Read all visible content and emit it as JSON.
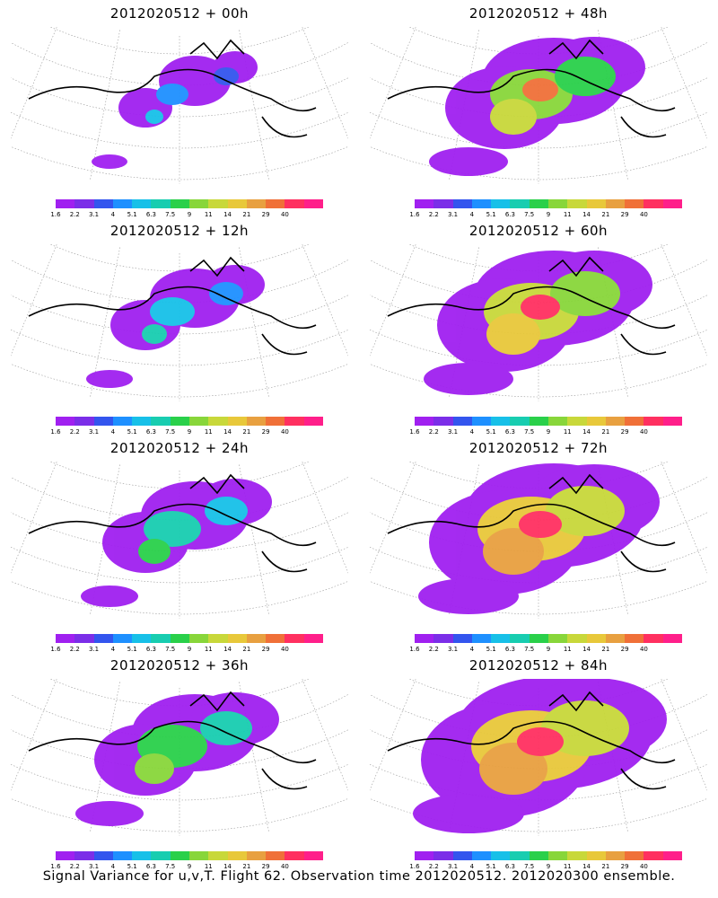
{
  "panels": [
    {
      "title": "2012020512 + 00h",
      "level": 0
    },
    {
      "title": "2012020512 + 48h",
      "level": 4
    },
    {
      "title": "2012020512 + 12h",
      "level": 1
    },
    {
      "title": "2012020512 + 60h",
      "level": 5
    },
    {
      "title": "2012020512 + 24h",
      "level": 2
    },
    {
      "title": "2012020512 + 72h",
      "level": 6
    },
    {
      "title": "2012020512 + 36h",
      "level": 3
    },
    {
      "title": "2012020512 + 84h",
      "level": 7
    }
  ],
  "colorbar": {
    "labels": [
      "1.6",
      "2.2",
      "3.1",
      "4",
      "5.1",
      "6.3",
      "7.5",
      "9",
      "11",
      "14",
      "21",
      "29",
      "40"
    ],
    "colors": [
      "#a020f0",
      "#7b2ee8",
      "#3355ee",
      "#1e90ff",
      "#17c0e8",
      "#18cdb0",
      "#2ad04a",
      "#88d63a",
      "#c8d83a",
      "#e8c83a",
      "#e8a040",
      "#f07038",
      "#ff3060",
      "#ff1f8a"
    ]
  },
  "footer": "Signal Variance for u,v,T. Flight 62. Observation time 2012020512. 2012020300 ensemble."
}
